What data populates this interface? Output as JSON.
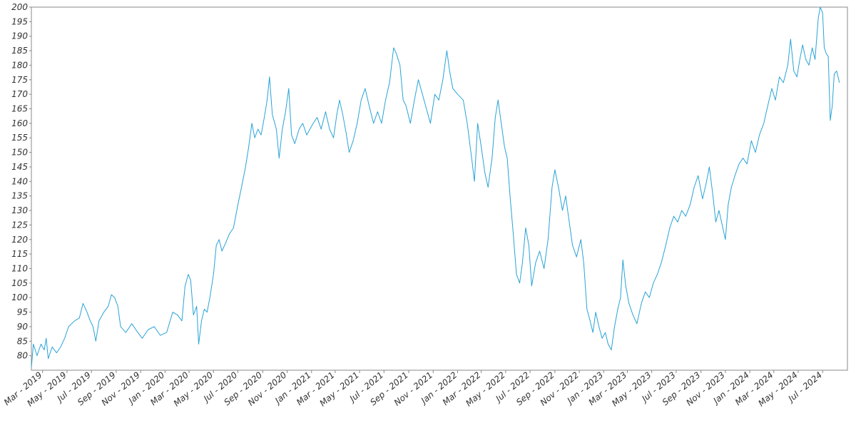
{
  "chart_data": {
    "type": "line",
    "ylim": [
      75,
      200
    ],
    "yticks": [
      80,
      85,
      90,
      95,
      100,
      105,
      110,
      115,
      120,
      125,
      130,
      135,
      140,
      145,
      150,
      155,
      160,
      165,
      170,
      175,
      180,
      185,
      190,
      195,
      200
    ],
    "ytick_labels": [
      "80",
      "85",
      "90",
      "95",
      "100",
      "105",
      "110",
      "115",
      "120",
      "125",
      "130",
      "135",
      "140",
      "145",
      "150",
      "155",
      "160",
      "165",
      "170",
      "175",
      "180",
      "185",
      "190",
      "195",
      "200"
    ],
    "xlim": [
      "2019-02-01",
      "2024-09-01"
    ],
    "xticks": [
      "2019-03-01",
      "2019-05-01",
      "2019-07-01",
      "2019-09-01",
      "2019-11-01",
      "2020-01-01",
      "2020-03-01",
      "2020-05-01",
      "2020-07-01",
      "2020-09-01",
      "2020-11-01",
      "2021-01-01",
      "2021-03-01",
      "2021-05-01",
      "2021-07-01",
      "2021-09-01",
      "2021-11-01",
      "2022-01-01",
      "2022-03-01",
      "2022-05-01",
      "2022-07-01",
      "2022-09-01",
      "2022-11-01",
      "2023-01-01",
      "2023-03-01",
      "2023-05-01",
      "2023-07-01",
      "2023-09-01",
      "2023-11-01",
      "2024-01-01",
      "2024-03-01",
      "2024-05-01",
      "2024-07-01"
    ],
    "xtick_labels": [
      "Mar - 2019",
      "May - 2019",
      "Jul - 2019",
      "Sep - 2019",
      "Nov - 2019",
      "Jan - 2020",
      "Mar - 2020",
      "May - 2020",
      "Jul - 2020",
      "Sep - 2020",
      "Nov - 2020",
      "Jan - 2021",
      "Mar - 2021",
      "May - 2021",
      "Jul - 2021",
      "Sep - 2021",
      "Nov - 2021",
      "Jan - 2022",
      "Mar - 2022",
      "May - 2022",
      "Jul - 2022",
      "Sep - 2022",
      "Nov - 2022",
      "Jan - 2023",
      "Mar - 2023",
      "May - 2023",
      "Jul - 2023",
      "Sep - 2023",
      "Nov - 2023",
      "Jan - 2024",
      "Mar - 2024",
      "May - 2024",
      "Jul - 2024"
    ],
    "grid": false,
    "series": [
      {
        "color": "#29a3d6",
        "points": [
          [
            "2019-02-01",
            76
          ],
          [
            "2019-02-06",
            84
          ],
          [
            "2019-02-15",
            80
          ],
          [
            "2019-02-25",
            84
          ],
          [
            "2019-03-05",
            82
          ],
          [
            "2019-03-10",
            86
          ],
          [
            "2019-03-15",
            79
          ],
          [
            "2019-03-25",
            83
          ],
          [
            "2019-04-05",
            81
          ],
          [
            "2019-04-15",
            83
          ],
          [
            "2019-04-25",
            86
          ],
          [
            "2019-05-05",
            90
          ],
          [
            "2019-05-20",
            92
          ],
          [
            "2019-06-01",
            93
          ],
          [
            "2019-06-10",
            98
          ],
          [
            "2019-06-20",
            95
          ],
          [
            "2019-06-28",
            92
          ],
          [
            "2019-07-05",
            90
          ],
          [
            "2019-07-12",
            85
          ],
          [
            "2019-07-20",
            92
          ],
          [
            "2019-08-01",
            95
          ],
          [
            "2019-08-12",
            97
          ],
          [
            "2019-08-20",
            101
          ],
          [
            "2019-08-28",
            100
          ],
          [
            "2019-09-05",
            97
          ],
          [
            "2019-09-12",
            90
          ],
          [
            "2019-09-25",
            88
          ],
          [
            "2019-10-10",
            91
          ],
          [
            "2019-10-25",
            88
          ],
          [
            "2019-11-05",
            86
          ],
          [
            "2019-11-20",
            89
          ],
          [
            "2019-12-05",
            90
          ],
          [
            "2019-12-20",
            87
          ],
          [
            "2020-01-05",
            88
          ],
          [
            "2020-01-20",
            95
          ],
          [
            "2020-02-01",
            94
          ],
          [
            "2020-02-12",
            92
          ],
          [
            "2020-02-20",
            104
          ],
          [
            "2020-02-28",
            108
          ],
          [
            "2020-03-05",
            106
          ],
          [
            "2020-03-12",
            94
          ],
          [
            "2020-03-20",
            97
          ],
          [
            "2020-03-25",
            84
          ],
          [
            "2020-04-01",
            92
          ],
          [
            "2020-04-08",
            96
          ],
          [
            "2020-04-15",
            95
          ],
          [
            "2020-04-22",
            100
          ],
          [
            "2020-05-01",
            108
          ],
          [
            "2020-05-08",
            118
          ],
          [
            "2020-05-15",
            120
          ],
          [
            "2020-05-22",
            116
          ],
          [
            "2020-06-01",
            119
          ],
          [
            "2020-06-10",
            122
          ],
          [
            "2020-06-20",
            124
          ],
          [
            "2020-07-01",
            132
          ],
          [
            "2020-07-10",
            138
          ],
          [
            "2020-07-20",
            145
          ],
          [
            "2020-07-28",
            152
          ],
          [
            "2020-08-05",
            160
          ],
          [
            "2020-08-12",
            155
          ],
          [
            "2020-08-20",
            158
          ],
          [
            "2020-08-28",
            156
          ],
          [
            "2020-09-05",
            162
          ],
          [
            "2020-09-12",
            168
          ],
          [
            "2020-09-18",
            176
          ],
          [
            "2020-09-25",
            163
          ],
          [
            "2020-10-05",
            158
          ],
          [
            "2020-10-12",
            148
          ],
          [
            "2020-10-20",
            158
          ],
          [
            "2020-10-28",
            164
          ],
          [
            "2020-11-05",
            172
          ],
          [
            "2020-11-12",
            156
          ],
          [
            "2020-11-20",
            153
          ],
          [
            "2020-12-01",
            158
          ],
          [
            "2020-12-10",
            160
          ],
          [
            "2020-12-20",
            156
          ],
          [
            "2021-01-05",
            160
          ],
          [
            "2021-01-15",
            162
          ],
          [
            "2021-01-25",
            158
          ],
          [
            "2021-02-05",
            164
          ],
          [
            "2021-02-15",
            158
          ],
          [
            "2021-02-25",
            155
          ],
          [
            "2021-03-05",
            163
          ],
          [
            "2021-03-12",
            168
          ],
          [
            "2021-03-20",
            163
          ],
          [
            "2021-03-28",
            157
          ],
          [
            "2021-04-05",
            150
          ],
          [
            "2021-04-15",
            154
          ],
          [
            "2021-04-25",
            160
          ],
          [
            "2021-05-05",
            168
          ],
          [
            "2021-05-15",
            172
          ],
          [
            "2021-05-25",
            166
          ],
          [
            "2021-06-05",
            160
          ],
          [
            "2021-06-15",
            164
          ],
          [
            "2021-06-25",
            160
          ],
          [
            "2021-07-05",
            168
          ],
          [
            "2021-07-15",
            174
          ],
          [
            "2021-07-25",
            186
          ],
          [
            "2021-08-01",
            184
          ],
          [
            "2021-08-10",
            180
          ],
          [
            "2021-08-18",
            168
          ],
          [
            "2021-08-25",
            166
          ],
          [
            "2021-09-05",
            160
          ],
          [
            "2021-09-15",
            168
          ],
          [
            "2021-09-25",
            175
          ],
          [
            "2021-10-05",
            170
          ],
          [
            "2021-10-15",
            165
          ],
          [
            "2021-10-25",
            160
          ],
          [
            "2021-11-05",
            170
          ],
          [
            "2021-11-15",
            168
          ],
          [
            "2021-11-25",
            175
          ],
          [
            "2021-12-05",
            185
          ],
          [
            "2021-12-12",
            178
          ],
          [
            "2021-12-20",
            172
          ],
          [
            "2022-01-01",
            170
          ],
          [
            "2022-01-15",
            168
          ],
          [
            "2022-01-25",
            160
          ],
          [
            "2022-02-05",
            148
          ],
          [
            "2022-02-12",
            140
          ],
          [
            "2022-02-20",
            160
          ],
          [
            "2022-03-01",
            152
          ],
          [
            "2022-03-10",
            143
          ],
          [
            "2022-03-18",
            138
          ],
          [
            "2022-03-28",
            148
          ],
          [
            "2022-04-05",
            162
          ],
          [
            "2022-04-12",
            168
          ],
          [
            "2022-04-20",
            160
          ],
          [
            "2022-04-28",
            152
          ],
          [
            "2022-05-05",
            148
          ],
          [
            "2022-05-12",
            135
          ],
          [
            "2022-05-20",
            122
          ],
          [
            "2022-05-28",
            108
          ],
          [
            "2022-06-05",
            105
          ],
          [
            "2022-06-12",
            112
          ],
          [
            "2022-06-20",
            124
          ],
          [
            "2022-06-28",
            118
          ],
          [
            "2022-07-05",
            104
          ],
          [
            "2022-07-15",
            112
          ],
          [
            "2022-07-25",
            116
          ],
          [
            "2022-08-05",
            110
          ],
          [
            "2022-08-15",
            120
          ],
          [
            "2022-08-25",
            138
          ],
          [
            "2022-09-01",
            144
          ],
          [
            "2022-09-10",
            138
          ],
          [
            "2022-09-20",
            130
          ],
          [
            "2022-09-28",
            135
          ],
          [
            "2022-10-05",
            128
          ],
          [
            "2022-10-15",
            118
          ],
          [
            "2022-10-25",
            114
          ],
          [
            "2022-11-05",
            120
          ],
          [
            "2022-11-12",
            112
          ],
          [
            "2022-11-20",
            96
          ],
          [
            "2022-11-28",
            92
          ],
          [
            "2022-12-05",
            88
          ],
          [
            "2022-12-12",
            95
          ],
          [
            "2022-12-20",
            90
          ],
          [
            "2022-12-28",
            86
          ],
          [
            "2023-01-05",
            88
          ],
          [
            "2023-01-12",
            84
          ],
          [
            "2023-01-20",
            82
          ],
          [
            "2023-01-28",
            90
          ],
          [
            "2023-02-05",
            96
          ],
          [
            "2023-02-12",
            100
          ],
          [
            "2023-02-18",
            113
          ],
          [
            "2023-02-25",
            104
          ],
          [
            "2023-03-05",
            98
          ],
          [
            "2023-03-15",
            94
          ],
          [
            "2023-03-25",
            91
          ],
          [
            "2023-04-05",
            98
          ],
          [
            "2023-04-15",
            102
          ],
          [
            "2023-04-25",
            100
          ],
          [
            "2023-05-05",
            105
          ],
          [
            "2023-05-15",
            108
          ],
          [
            "2023-05-25",
            112
          ],
          [
            "2023-06-05",
            118
          ],
          [
            "2023-06-15",
            124
          ],
          [
            "2023-06-25",
            128
          ],
          [
            "2023-07-05",
            126
          ],
          [
            "2023-07-15",
            130
          ],
          [
            "2023-07-25",
            128
          ],
          [
            "2023-08-05",
            132
          ],
          [
            "2023-08-15",
            138
          ],
          [
            "2023-08-25",
            142
          ],
          [
            "2023-09-05",
            134
          ],
          [
            "2023-09-15",
            140
          ],
          [
            "2023-09-22",
            145
          ],
          [
            "2023-10-01",
            135
          ],
          [
            "2023-10-08",
            126
          ],
          [
            "2023-10-16",
            130
          ],
          [
            "2023-10-24",
            125
          ],
          [
            "2023-11-01",
            120
          ],
          [
            "2023-11-08",
            132
          ],
          [
            "2023-11-16",
            138
          ],
          [
            "2023-11-25",
            142
          ],
          [
            "2023-12-05",
            146
          ],
          [
            "2023-12-15",
            148
          ],
          [
            "2023-12-25",
            146
          ],
          [
            "2024-01-05",
            154
          ],
          [
            "2024-01-15",
            150
          ],
          [
            "2024-01-25",
            156
          ],
          [
            "2024-02-05",
            160
          ],
          [
            "2024-02-15",
            166
          ],
          [
            "2024-02-25",
            172
          ],
          [
            "2024-03-05",
            168
          ],
          [
            "2024-03-15",
            176
          ],
          [
            "2024-03-25",
            174
          ],
          [
            "2024-04-05",
            180
          ],
          [
            "2024-04-12",
            189
          ],
          [
            "2024-04-20",
            178
          ],
          [
            "2024-04-28",
            176
          ],
          [
            "2024-05-05",
            182
          ],
          [
            "2024-05-12",
            187
          ],
          [
            "2024-05-20",
            182
          ],
          [
            "2024-05-28",
            180
          ],
          [
            "2024-06-05",
            186
          ],
          [
            "2024-06-12",
            182
          ],
          [
            "2024-06-20",
            196
          ],
          [
            "2024-06-25",
            200
          ],
          [
            "2024-07-01",
            198
          ],
          [
            "2024-07-05",
            186
          ],
          [
            "2024-07-10",
            184
          ],
          [
            "2024-07-15",
            183
          ],
          [
            "2024-07-20",
            161
          ],
          [
            "2024-07-25",
            166
          ],
          [
            "2024-07-30",
            177
          ],
          [
            "2024-08-05",
            178
          ],
          [
            "2024-08-12",
            174
          ]
        ]
      }
    ]
  }
}
